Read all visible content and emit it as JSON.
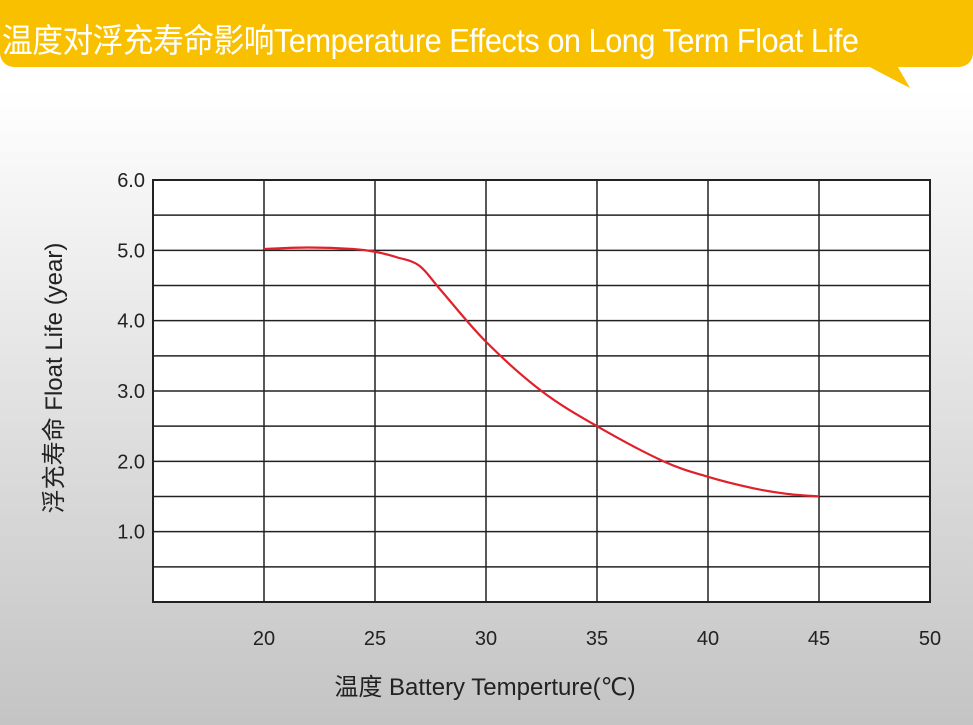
{
  "header": {
    "title": "温度对浮充寿命影响Temperature Effects on Long Term Float Life",
    "color": "#f9c000"
  },
  "chart_data": {
    "type": "line",
    "title": "温度对浮充寿命影响Temperature Effects on Long Term Float Life",
    "xlabel": "温度  Battery  Temperture(℃)",
    "ylabel": "浮充寿命  Float Life (year)",
    "xlim": [
      15,
      50
    ],
    "ylim": [
      0,
      6
    ],
    "xticks": [
      "20",
      "25",
      "30",
      "35",
      "40",
      "45",
      "50"
    ],
    "yticks": [
      "1.0",
      "2.0",
      "3.0",
      "4.0",
      "5.0",
      "6.0"
    ],
    "grid": true,
    "line_color": "#e0202a",
    "x": [
      20,
      22,
      24,
      25,
      26,
      27,
      28,
      30,
      32.5,
      35,
      38,
      40,
      42,
      43.5,
      45
    ],
    "y": [
      5.02,
      5.04,
      5.02,
      4.98,
      4.9,
      4.78,
      4.42,
      3.7,
      3.0,
      2.5,
      2.0,
      1.78,
      1.62,
      1.54,
      1.5
    ]
  }
}
